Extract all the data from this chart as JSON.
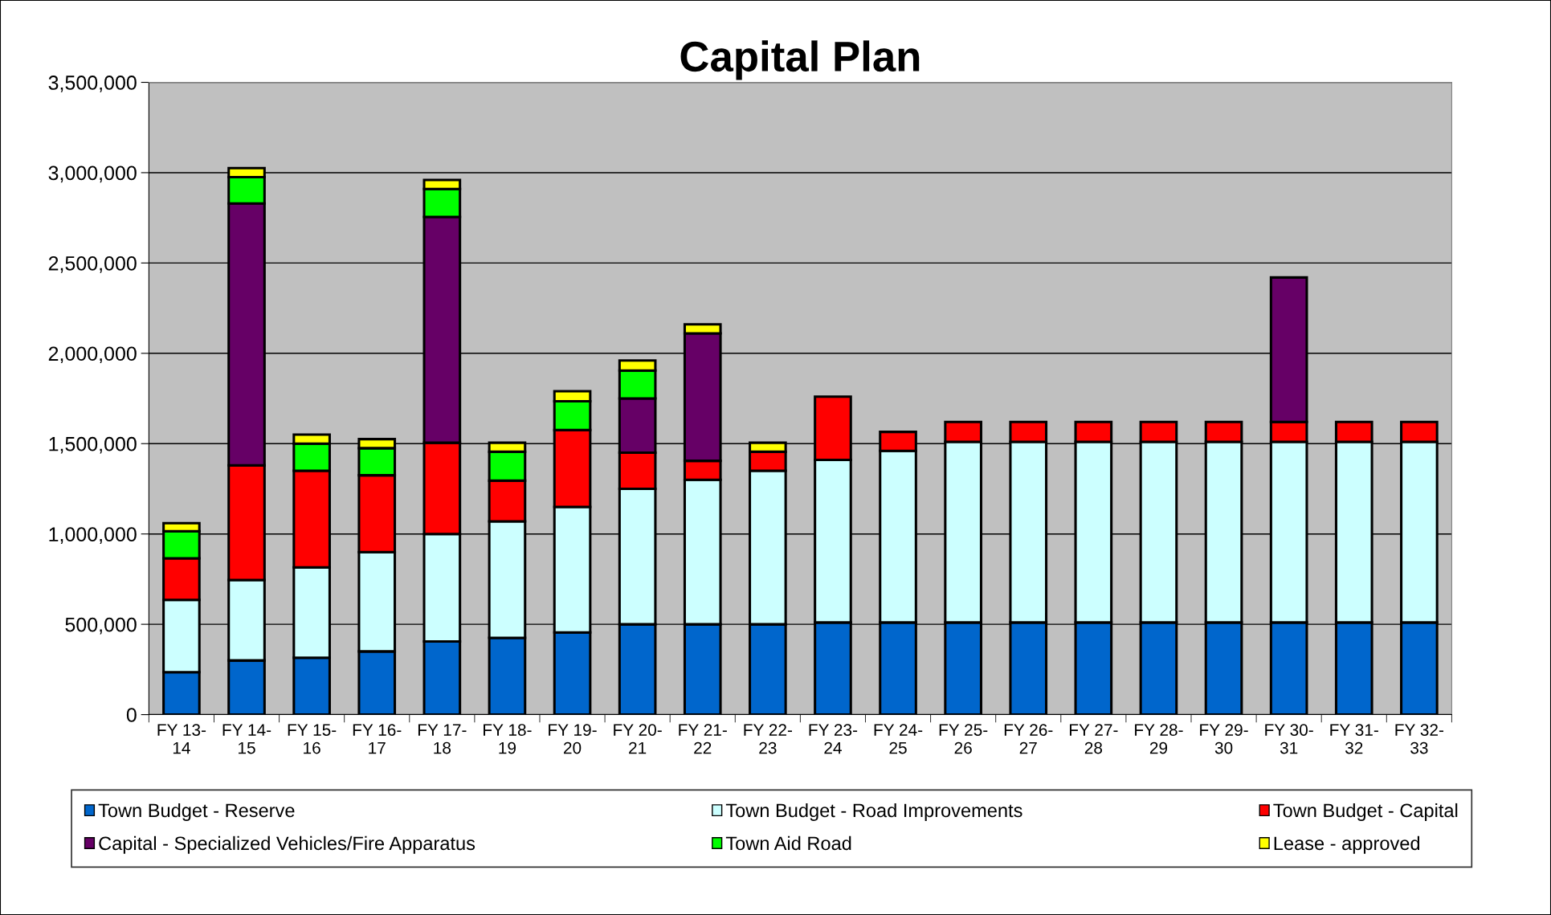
{
  "chart_data": {
    "type": "bar",
    "title": "Capital Plan",
    "stacked": true,
    "categories": [
      "FY 13-14",
      "FY 14-15",
      "FY 15-16",
      "FY 16-17",
      "FY 17-18",
      "FY 18-19",
      "FY 19-20",
      "FY 20-21",
      "FY 21-22",
      "FY 22-23",
      "FY 23-24",
      "FY 24-25",
      "FY 25-26",
      "FY 26-27",
      "FY 27-28",
      "FY 28-29",
      "FY 29-30",
      "FY 30-31",
      "FY 31-32",
      "FY 32-33"
    ],
    "series": [
      {
        "name": "Town Budget - Reserve",
        "color": "#0066cc",
        "values": [
          235000,
          300000,
          315000,
          350000,
          405000,
          425000,
          455000,
          500000,
          500000,
          500000,
          510000,
          510000,
          510000,
          510000,
          510000,
          510000,
          510000,
          510000,
          510000,
          510000
        ]
      },
      {
        "name": "Town Budget - Road Improvements",
        "color": "#ccffff",
        "values": [
          400000,
          445000,
          500000,
          550000,
          595000,
          645000,
          695000,
          750000,
          800000,
          850000,
          900000,
          950000,
          1000000,
          1000000,
          1000000,
          1000000,
          1000000,
          1000000,
          1000000,
          1000000
        ]
      },
      {
        "name": "Town Budget - Capital",
        "color": "#ff0000",
        "values": [
          230000,
          635000,
          535000,
          425000,
          505000,
          225000,
          425000,
          200000,
          105000,
          105000,
          350000,
          105000,
          110000,
          110000,
          110000,
          110000,
          110000,
          110000,
          110000,
          110000
        ]
      },
      {
        "name": "Capital - Specialized Vehicles/Fire Apparatus",
        "color": "#660066",
        "values": [
          null,
          1450000,
          null,
          null,
          1250000,
          null,
          null,
          300000,
          705000,
          null,
          null,
          null,
          null,
          null,
          null,
          null,
          null,
          800000,
          null,
          null
        ]
      },
      {
        "name": "Town Aid Road",
        "color": "#00ff00",
        "values": [
          150000,
          145000,
          150000,
          150000,
          155000,
          160000,
          160000,
          155000,
          null,
          null,
          null,
          null,
          null,
          null,
          null,
          null,
          null,
          null,
          null,
          null
        ]
      },
      {
        "name": "Lease - approved",
        "color": "#ffff00",
        "values": [
          45000,
          50000,
          50000,
          50000,
          50000,
          50000,
          55000,
          55000,
          50000,
          50000,
          null,
          null,
          null,
          null,
          null,
          null,
          null,
          null,
          null,
          null
        ]
      }
    ],
    "ylim": [
      0,
      3500000
    ],
    "yticks": [
      0,
      {
        "value": 500000,
        "label": "500,000"
      },
      {
        "value": 1000000,
        "label": "1,000,000"
      },
      {
        "value": 1500000,
        "label": "1,500,000"
      },
      {
        "value": 2000000,
        "label": "2,000,000"
      },
      {
        "value": 2500000,
        "label": "2,500,000"
      },
      {
        "value": 3000000,
        "label": "3,000,000"
      },
      {
        "value": 3500000,
        "label": "3,500,000"
      }
    ],
    "grid": "y",
    "legend": "bottom"
  }
}
